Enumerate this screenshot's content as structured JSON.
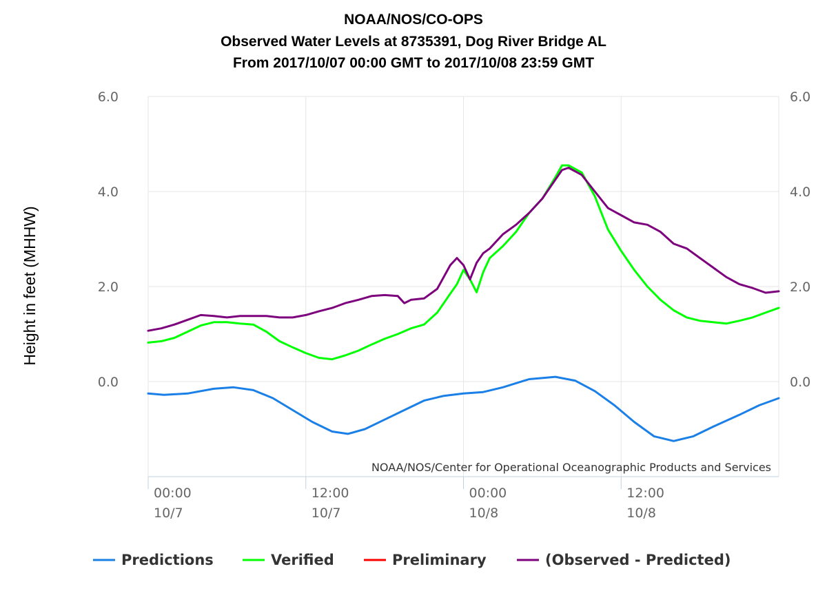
{
  "chart_data": {
    "type": "line",
    "title": "NOAA/NOS/CO-OPS",
    "subtitle": "Observed Water Levels at 8735391, Dog River Bridge AL",
    "subtitle2": "From 2017/10/07 00:00 GMT to 2017/10/08 23:59 GMT",
    "ylabel": "Height in feet (MHHW)",
    "credit": "NOAA/NOS/Center for Operational Oceanographic Products and Services",
    "x_unit": "hours since 2017-10-07 00:00 GMT",
    "xlim": [
      0,
      48
    ],
    "ylim": [
      -2,
      6
    ],
    "yticks": [
      0,
      2,
      4,
      6
    ],
    "ytick_labels": [
      "0.0",
      "2.0",
      "4.0",
      "6.0"
    ],
    "xticks": [
      {
        "x": 0,
        "time": "00:00",
        "date": "10/7"
      },
      {
        "x": 12,
        "time": "12:00",
        "date": "10/7"
      },
      {
        "x": 24,
        "time": "00:00",
        "date": "10/8"
      },
      {
        "x": 36,
        "time": "12:00",
        "date": "10/8"
      }
    ],
    "grid": true,
    "legend_position": "bottom",
    "series": [
      {
        "name": "Predictions",
        "color": "#1a7fe6",
        "x": [
          0,
          1.2,
          3,
          5,
          6.5,
          8,
          9.5,
          11,
          12.5,
          14,
          15.2,
          16.5,
          18,
          19.5,
          21,
          22.5,
          24,
          25.5,
          27,
          29,
          31,
          32.5,
          34,
          35.5,
          37,
          38.5,
          40,
          41.5,
          43,
          45,
          46.5,
          48
        ],
        "y": [
          -0.25,
          -0.28,
          -0.25,
          -0.15,
          -0.12,
          -0.18,
          -0.35,
          -0.6,
          -0.85,
          -1.05,
          -1.1,
          -1.0,
          -0.8,
          -0.6,
          -0.4,
          -0.3,
          -0.25,
          -0.22,
          -0.12,
          0.05,
          0.1,
          0.02,
          -0.2,
          -0.5,
          -0.85,
          -1.15,
          -1.25,
          -1.15,
          -0.95,
          -0.7,
          -0.5,
          -0.35
        ]
      },
      {
        "name": "Verified",
        "color": "#00ff00",
        "x": [
          0,
          1,
          2,
          3,
          4,
          5,
          6,
          7,
          8,
          9,
          10,
          11,
          12,
          13,
          14,
          15,
          16,
          17,
          18,
          19,
          20,
          21,
          22,
          23,
          23.5,
          24,
          24.5,
          25,
          25.5,
          26,
          27,
          28,
          29,
          30,
          31,
          31.5,
          32,
          33,
          34,
          35,
          36,
          37,
          38,
          39,
          40,
          41,
          42,
          43,
          44,
          45,
          46,
          47,
          48
        ],
        "y": [
          0.82,
          0.85,
          0.92,
          1.05,
          1.18,
          1.25,
          1.25,
          1.22,
          1.2,
          1.05,
          0.85,
          0.72,
          0.6,
          0.5,
          0.47,
          0.55,
          0.65,
          0.78,
          0.9,
          1.0,
          1.12,
          1.2,
          1.45,
          1.85,
          2.05,
          2.35,
          2.15,
          1.88,
          2.3,
          2.6,
          2.85,
          3.15,
          3.55,
          3.85,
          4.3,
          4.55,
          4.55,
          4.4,
          3.9,
          3.2,
          2.75,
          2.35,
          2.0,
          1.72,
          1.5,
          1.35,
          1.28,
          1.25,
          1.22,
          1.28,
          1.35,
          1.45,
          1.55
        ]
      },
      {
        "name": "Preliminary",
        "color": "#ff0000",
        "x": [],
        "y": []
      },
      {
        "name": "(Observed - Predicted)",
        "color": "#7d007d",
        "x": [
          0,
          1,
          2,
          3,
          4,
          5,
          6,
          7,
          8,
          9,
          10,
          11,
          12,
          13,
          14,
          15,
          16,
          17,
          18,
          19,
          19.5,
          20,
          21,
          22,
          23,
          23.5,
          24,
          24.5,
          25,
          25.5,
          26,
          27,
          28,
          29,
          30,
          31,
          31.5,
          32,
          33,
          34,
          35,
          36,
          37,
          38,
          39,
          40,
          41,
          42,
          43,
          44,
          45,
          46,
          47,
          48
        ],
        "y": [
          1.07,
          1.12,
          1.2,
          1.3,
          1.4,
          1.38,
          1.35,
          1.38,
          1.38,
          1.38,
          1.35,
          1.35,
          1.4,
          1.48,
          1.55,
          1.65,
          1.72,
          1.8,
          1.82,
          1.8,
          1.65,
          1.72,
          1.75,
          1.95,
          2.45,
          2.6,
          2.45,
          2.15,
          2.5,
          2.7,
          2.8,
          3.1,
          3.3,
          3.55,
          3.85,
          4.25,
          4.45,
          4.5,
          4.35,
          4.0,
          3.65,
          3.5,
          3.35,
          3.3,
          3.15,
          2.9,
          2.8,
          2.6,
          2.4,
          2.2,
          2.05,
          1.97,
          1.87,
          1.9
        ]
      }
    ]
  }
}
